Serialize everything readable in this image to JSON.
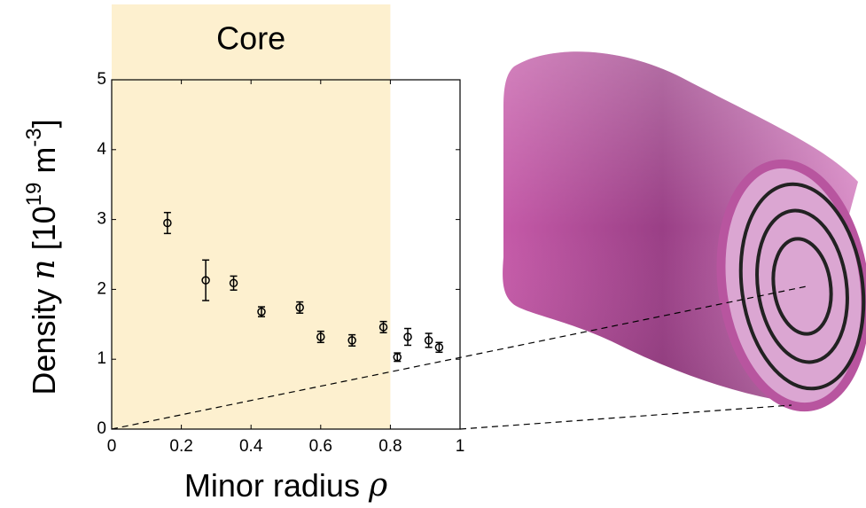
{
  "chart_data": {
    "type": "scatter",
    "annotation": "Core",
    "shaded_xlim": [
      0,
      0.8
    ],
    "xlabel_parts": [
      "Minor radius ",
      "ρ"
    ],
    "ylabel_parts": [
      "Density ",
      "n",
      " [10",
      "19",
      " m",
      "-3",
      "]"
    ],
    "x": [
      0.16,
      0.27,
      0.35,
      0.43,
      0.54,
      0.6,
      0.69,
      0.78,
      0.82,
      0.85,
      0.91,
      0.94
    ],
    "values": [
      2.95,
      2.13,
      2.09,
      1.68,
      1.74,
      1.32,
      1.27,
      1.46,
      1.03,
      1.32,
      1.27,
      1.17
    ],
    "errors": [
      0.15,
      0.29,
      0.1,
      0.07,
      0.08,
      0.08,
      0.08,
      0.08,
      0.06,
      0.12,
      0.1,
      0.07
    ],
    "color": "#000000",
    "shade_color": "#fdf0cf",
    "xlim": [
      0,
      1
    ],
    "xticks": [
      0,
      0.2,
      0.4,
      0.6,
      0.8,
      1
    ],
    "ylim": [
      0,
      5
    ],
    "yticks": [
      0,
      1,
      2,
      3,
      4,
      5
    ]
  }
}
